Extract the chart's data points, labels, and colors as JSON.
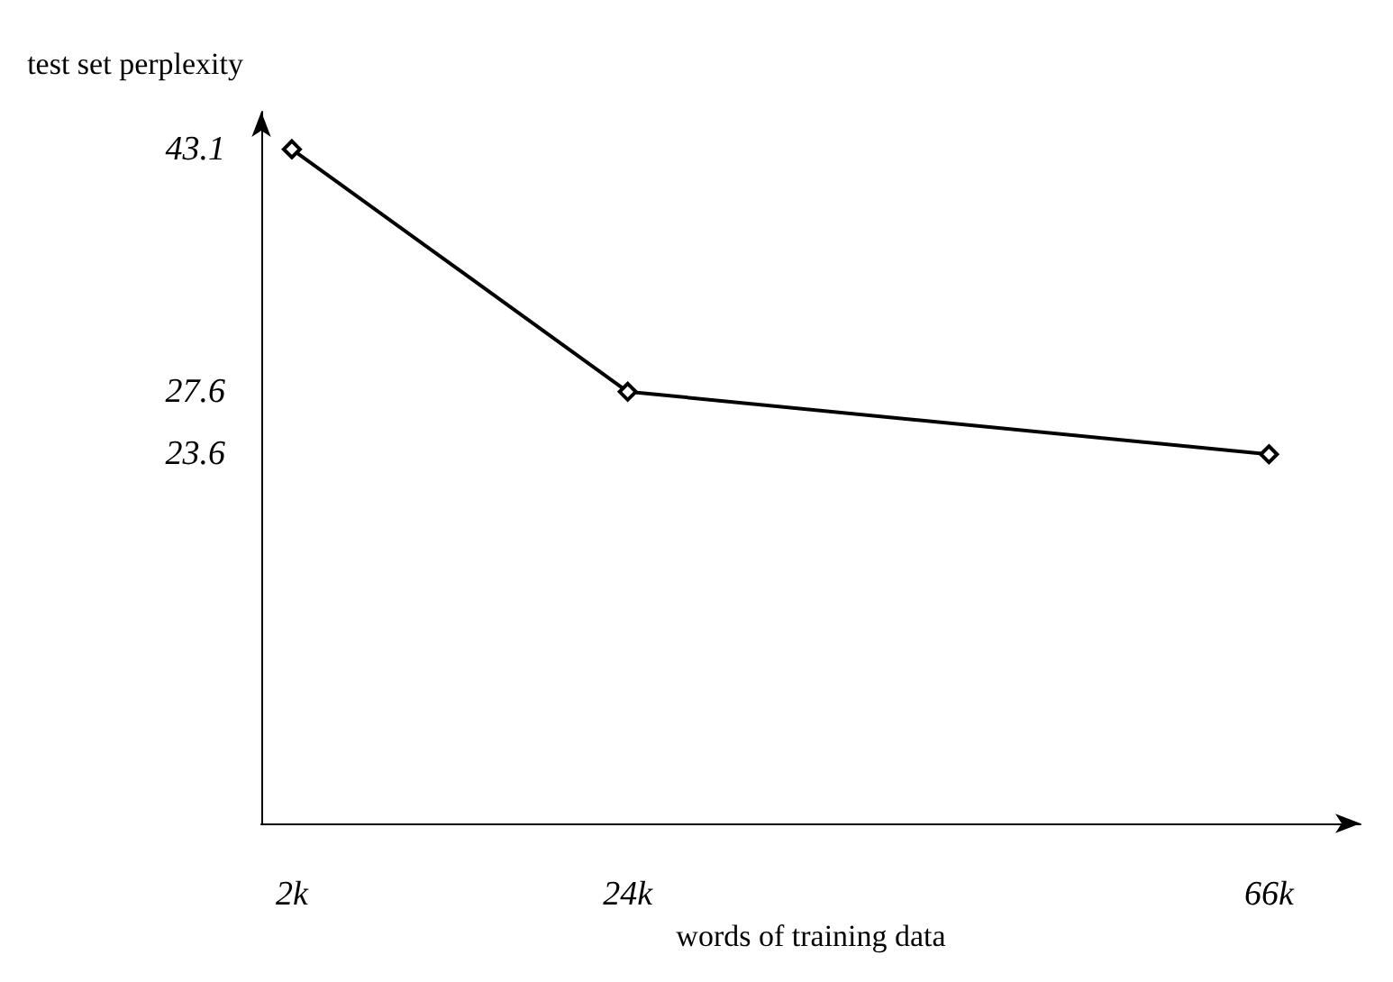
{
  "chart_data": {
    "type": "line",
    "xlabel": "words of training data",
    "ylabel": "test set perplexity",
    "x": [
      2,
      24,
      66
    ],
    "series": [
      {
        "color": "#000000",
        "values": [
          43.1,
          27.6,
          23.6
        ]
      }
    ],
    "xlim": [
      0,
      72
    ],
    "ylim": [
      0,
      45.5
    ],
    "xticks": [
      {
        "value": 2,
        "label": "2k"
      },
      {
        "value": 24,
        "label": "24k"
      },
      {
        "value": 66,
        "label": "66k"
      }
    ],
    "yticks": [
      23.6,
      27.6,
      43.1
    ],
    "marker": "diamond",
    "line_style": "solid",
    "grid": false
  }
}
